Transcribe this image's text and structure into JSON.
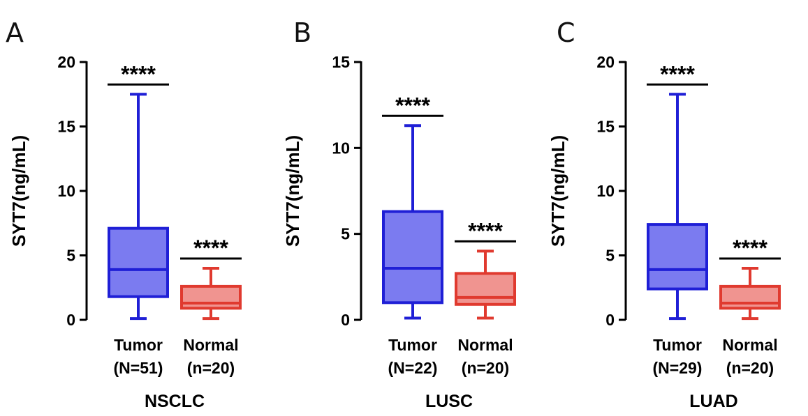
{
  "chart_data": [
    {
      "type": "boxplot",
      "panel_label": "A",
      "title": "NSCLC",
      "ylabel": "SYT7(ng/mL)",
      "ylim": [
        0,
        20
      ],
      "yticks": [
        0,
        5,
        10,
        15,
        20
      ],
      "series": [
        {
          "name": "Tumor",
          "n_label": "(N=51)",
          "color": "#1f1fd6",
          "fill": "#7b7bf0",
          "min": 0.1,
          "q1": 1.8,
          "median": 3.9,
          "q3": 7.1,
          "max": 17.5,
          "significance": "****"
        },
        {
          "name": "Normal",
          "n_label": "(n=20)",
          "color": "#e03a2f",
          "fill": "#f09490",
          "min": 0.1,
          "q1": 0.9,
          "median": 1.3,
          "q3": 2.6,
          "max": 4.0,
          "significance": "****"
        }
      ]
    },
    {
      "type": "boxplot",
      "panel_label": "B",
      "title": "LUSC",
      "ylabel": "SYT7(ng/mL)",
      "ylim": [
        0,
        15
      ],
      "yticks": [
        0,
        5,
        10,
        15
      ],
      "series": [
        {
          "name": "Tumor",
          "n_label": "(N=22)",
          "color": "#1f1fd6",
          "fill": "#7b7bf0",
          "min": 0.1,
          "q1": 1.0,
          "median": 3.0,
          "q3": 6.3,
          "max": 11.3,
          "significance": "****"
        },
        {
          "name": "Normal",
          "n_label": "(n=20)",
          "color": "#e03a2f",
          "fill": "#f09490",
          "min": 0.1,
          "q1": 0.9,
          "median": 1.3,
          "q3": 2.7,
          "max": 4.0,
          "significance": "****"
        }
      ]
    },
    {
      "type": "boxplot",
      "panel_label": "C",
      "title": "LUAD",
      "ylabel": "SYT7(ng/mL)",
      "ylim": [
        0,
        20
      ],
      "yticks": [
        0,
        5,
        10,
        15,
        20
      ],
      "series": [
        {
          "name": "Tumor",
          "n_label": "(N=29)",
          "color": "#1f1fd6",
          "fill": "#7b7bf0",
          "min": 0.1,
          "q1": 2.4,
          "median": 3.9,
          "q3": 7.4,
          "max": 17.5,
          "significance": "****"
        },
        {
          "name": "Normal",
          "n_label": "(n=20)",
          "color": "#e03a2f",
          "fill": "#f09490",
          "min": 0.1,
          "q1": 0.9,
          "median": 1.3,
          "q3": 2.6,
          "max": 4.0,
          "significance": "****"
        }
      ]
    }
  ]
}
